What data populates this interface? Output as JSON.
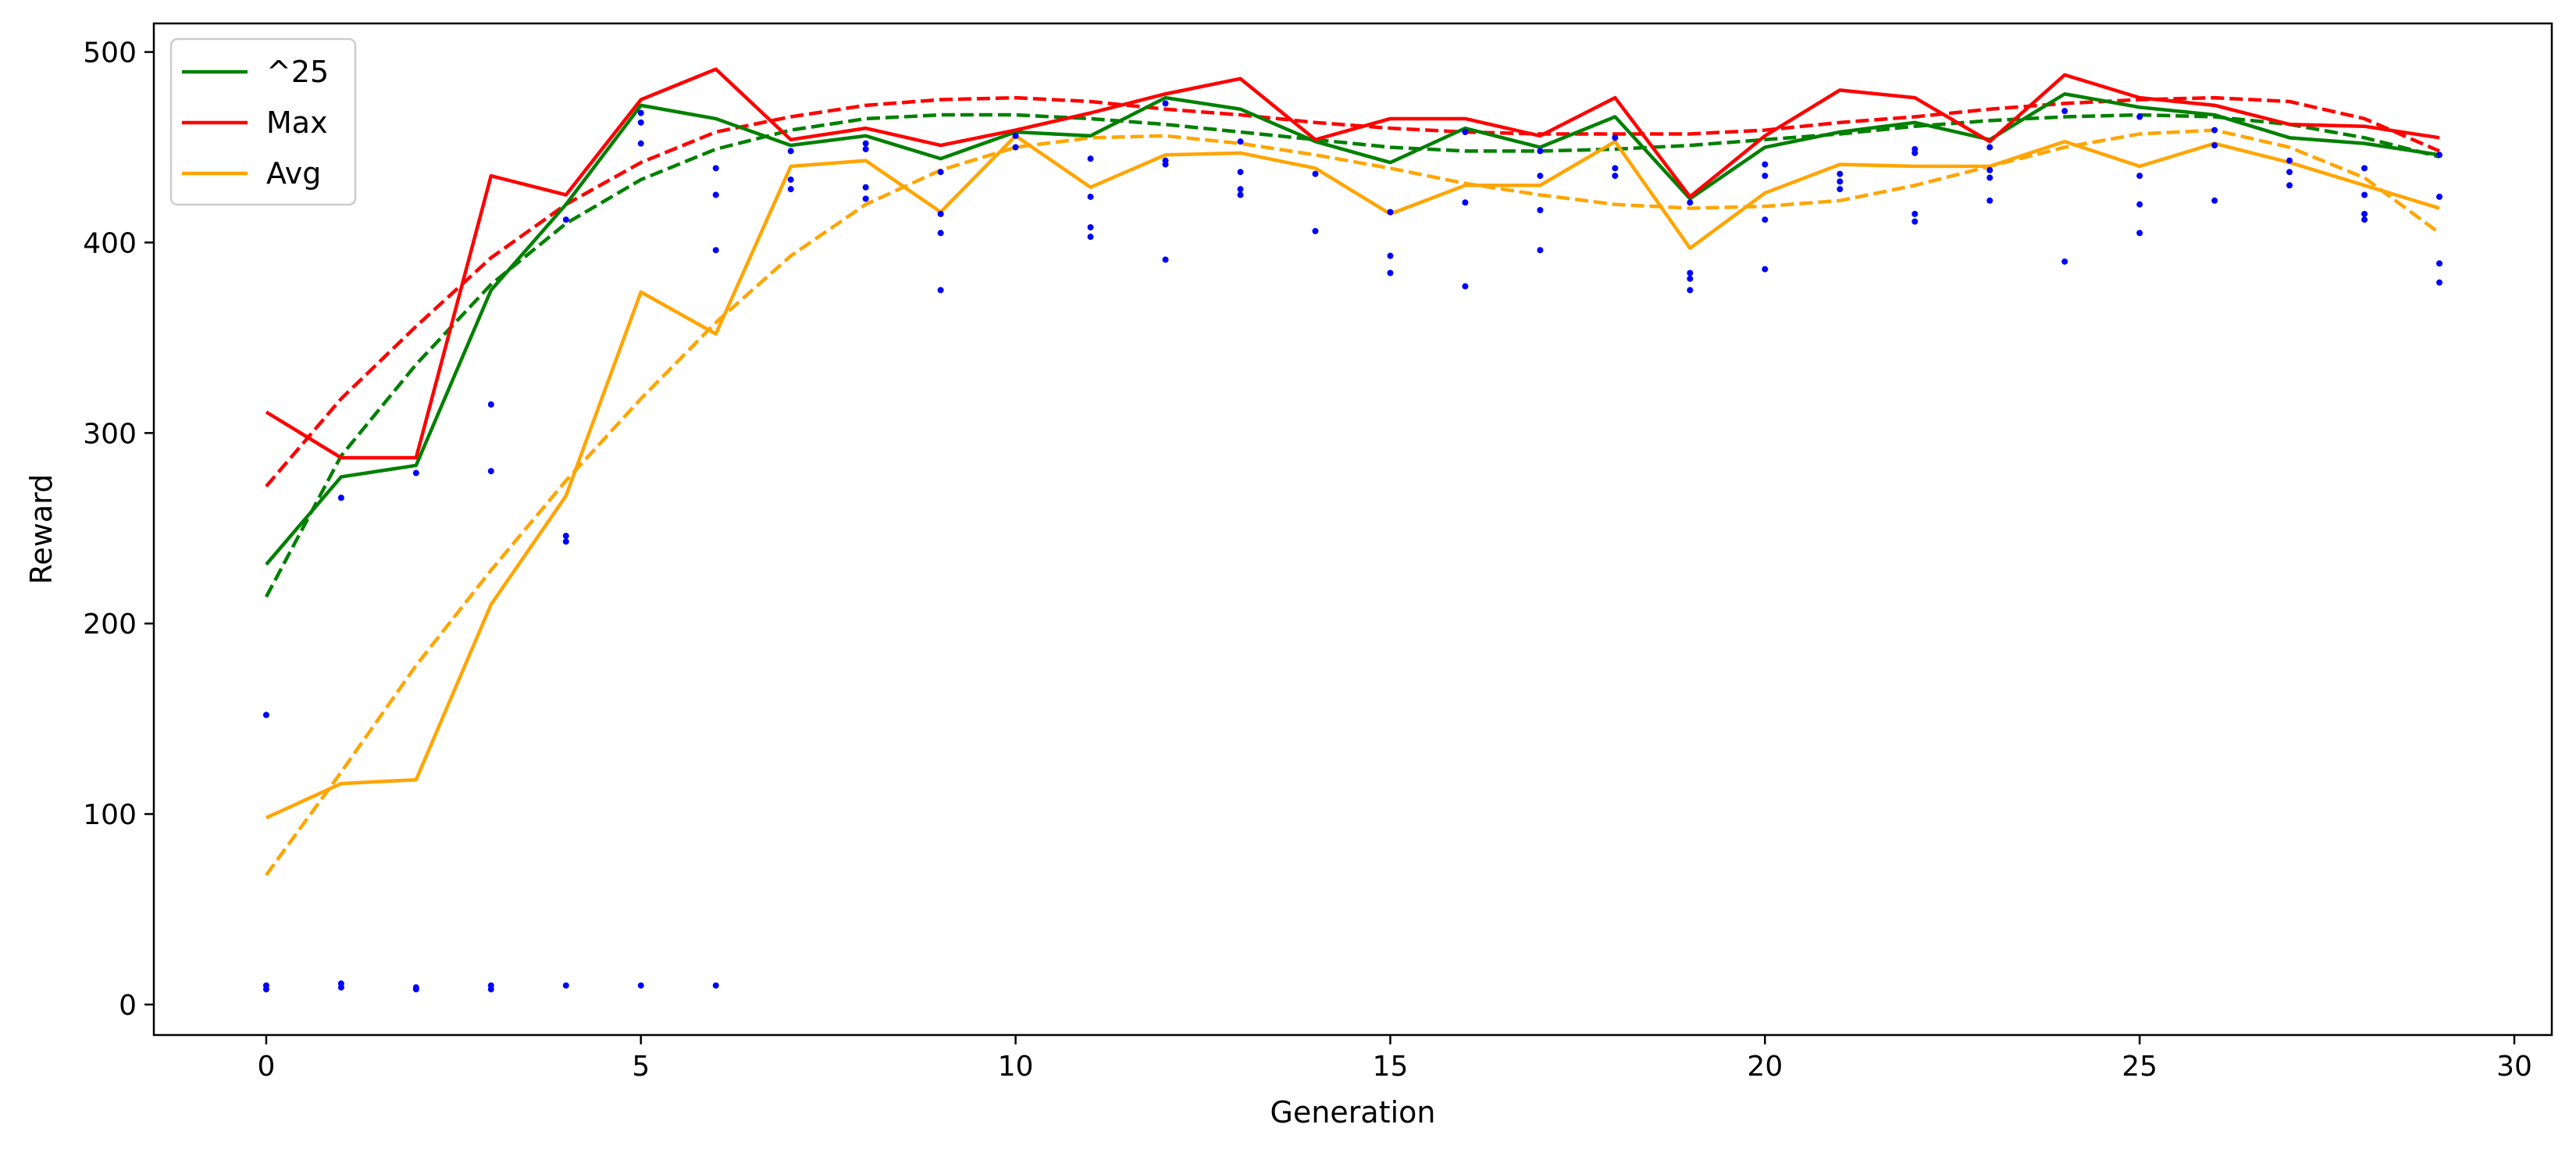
{
  "chart_data": {
    "type": "line",
    "title": "",
    "xlabel": "Generation",
    "ylabel": "Reward",
    "xlim": [
      -1.5,
      30.5
    ],
    "ylim": [
      -16,
      515
    ],
    "xticks": [
      0,
      5,
      10,
      15,
      20,
      25,
      30
    ],
    "yticks": [
      0,
      100,
      200,
      300,
      400,
      500
    ],
    "grid": false,
    "legend_position": "top-left",
    "x": [
      0,
      1,
      2,
      3,
      4,
      5,
      6,
      7,
      8,
      9,
      10,
      11,
      12,
      13,
      14,
      15,
      16,
      17,
      18,
      19,
      20,
      21,
      22,
      23,
      24,
      25,
      26,
      27,
      28,
      29
    ],
    "series": [
      {
        "name": "^25",
        "color": "#008000",
        "style": "solid",
        "values": [
          231,
          277,
          283,
          375,
          420,
          472,
          465,
          451,
          456,
          444,
          458,
          456,
          476,
          470,
          453,
          442,
          460,
          450,
          466,
          423,
          450,
          458,
          463,
          454,
          478,
          471,
          467,
          455,
          452,
          446
        ]
      },
      {
        "name": "Max",
        "color": "#ff0000",
        "style": "solid",
        "values": [
          311,
          287,
          287,
          435,
          425,
          475,
          491,
          454,
          460,
          451,
          459,
          468,
          478,
          486,
          454,
          465,
          465,
          456,
          476,
          424,
          456,
          480,
          476,
          453,
          488,
          476,
          472,
          462,
          461,
          455
        ]
      },
      {
        "name": "Avg",
        "color": "#ffa500",
        "style": "solid",
        "values": [
          98,
          116,
          118,
          210,
          267,
          374,
          352,
          440,
          443,
          416,
          456,
          429,
          446,
          447,
          439,
          415,
          430,
          430,
          453,
          397,
          426,
          441,
          440,
          440,
          453,
          440,
          452,
          442,
          430,
          418
        ]
      }
    ],
    "trend_lines": [
      {
        "of": "^25",
        "color": "#008000",
        "style": "dashed",
        "values": [
          214,
          288,
          336,
          378,
          410,
          433,
          449,
          459,
          465,
          467,
          467,
          465,
          462,
          458,
          454,
          450,
          448,
          448,
          449,
          451,
          454,
          457,
          461,
          464,
          466,
          467,
          466,
          462,
          455,
          445
        ]
      },
      {
        "of": "Max",
        "color": "#ff0000",
        "style": "dashed",
        "values": [
          272,
          318,
          356,
          392,
          420,
          442,
          458,
          466,
          472,
          475,
          476,
          474,
          470,
          467,
          463,
          460,
          458,
          457,
          457,
          457,
          459,
          463,
          466,
          470,
          473,
          475,
          476,
          474,
          465,
          448
        ]
      },
      {
        "of": "Avg",
        "color": "#ffa500",
        "style": "dashed",
        "values": [
          68,
          122,
          178,
          228,
          275,
          318,
          358,
          393,
          420,
          438,
          450,
          455,
          456,
          452,
          446,
          439,
          431,
          425,
          420,
          418,
          419,
          422,
          430,
          440,
          450,
          457,
          459,
          450,
          434,
          405
        ]
      }
    ],
    "scatter": {
      "color": "#0000ff",
      "points": [
        [
          0,
          152
        ],
        [
          0,
          10
        ],
        [
          0,
          8
        ],
        [
          1,
          266
        ],
        [
          1,
          11
        ],
        [
          1,
          9
        ],
        [
          2,
          279
        ],
        [
          2,
          9
        ],
        [
          2,
          8
        ],
        [
          3,
          315
        ],
        [
          3,
          280
        ],
        [
          3,
          10
        ],
        [
          3,
          8
        ],
        [
          4,
          412
        ],
        [
          4,
          246
        ],
        [
          4,
          243
        ],
        [
          4,
          10
        ],
        [
          5,
          468
        ],
        [
          5,
          463
        ],
        [
          5,
          452
        ],
        [
          5,
          10
        ],
        [
          6,
          439
        ],
        [
          6,
          425
        ],
        [
          6,
          396
        ],
        [
          6,
          10
        ],
        [
          7,
          448
        ],
        [
          7,
          433
        ],
        [
          7,
          428
        ],
        [
          8,
          452
        ],
        [
          8,
          449
        ],
        [
          8,
          429
        ],
        [
          8,
          423
        ],
        [
          9,
          437
        ],
        [
          9,
          415
        ],
        [
          9,
          405
        ],
        [
          9,
          375
        ],
        [
          10,
          456
        ],
        [
          10,
          450
        ],
        [
          11,
          444
        ],
        [
          11,
          424
        ],
        [
          11,
          408
        ],
        [
          11,
          403
        ],
        [
          12,
          473
        ],
        [
          12,
          443
        ],
        [
          12,
          441
        ],
        [
          12,
          391
        ],
        [
          13,
          453
        ],
        [
          13,
          437
        ],
        [
          13,
          428
        ],
        [
          13,
          425
        ],
        [
          14,
          436
        ],
        [
          14,
          406
        ],
        [
          15,
          416
        ],
        [
          15,
          393
        ],
        [
          15,
          384
        ],
        [
          16,
          458
        ],
        [
          16,
          421
        ],
        [
          16,
          377
        ],
        [
          17,
          448
        ],
        [
          17,
          435
        ],
        [
          17,
          417
        ],
        [
          17,
          396
        ],
        [
          18,
          455
        ],
        [
          18,
          439
        ],
        [
          18,
          435
        ],
        [
          19,
          421
        ],
        [
          19,
          384
        ],
        [
          19,
          381
        ],
        [
          19,
          375
        ],
        [
          20,
          441
        ],
        [
          20,
          435
        ],
        [
          20,
          412
        ],
        [
          20,
          386
        ],
        [
          21,
          436
        ],
        [
          21,
          432
        ],
        [
          21,
          428
        ],
        [
          22,
          449
        ],
        [
          22,
          447
        ],
        [
          22,
          415
        ],
        [
          22,
          411
        ],
        [
          23,
          450
        ],
        [
          23,
          438
        ],
        [
          23,
          434
        ],
        [
          23,
          422
        ],
        [
          24,
          469
        ],
        [
          24,
          390
        ],
        [
          25,
          466
        ],
        [
          25,
          435
        ],
        [
          25,
          420
        ],
        [
          25,
          405
        ],
        [
          26,
          459
        ],
        [
          26,
          451
        ],
        [
          26,
          422
        ],
        [
          27,
          443
        ],
        [
          27,
          437
        ],
        [
          27,
          430
        ],
        [
          28,
          439
        ],
        [
          28,
          425
        ],
        [
          28,
          415
        ],
        [
          28,
          412
        ],
        [
          29,
          446
        ],
        [
          29,
          424
        ],
        [
          29,
          389
        ],
        [
          29,
          379
        ]
      ]
    }
  }
}
